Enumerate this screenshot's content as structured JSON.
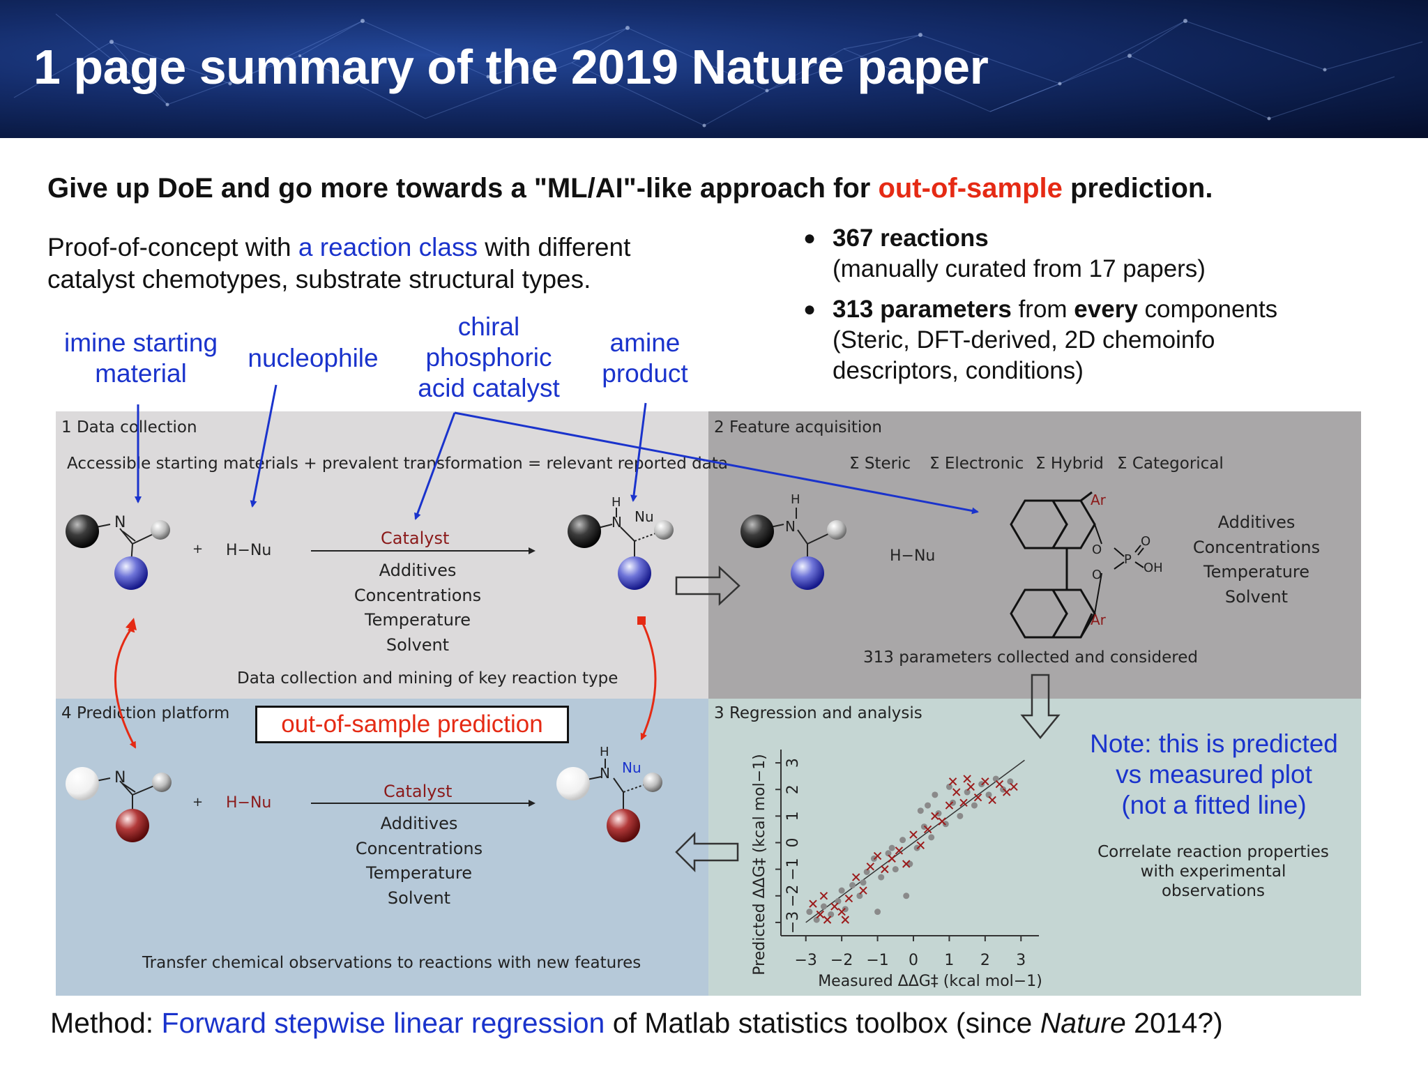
{
  "header": {
    "title": "1 page summary of the 2019 Nature paper"
  },
  "headline": {
    "part1": "Give up DoE and go more towards a \"ML/AI\"-like approach for ",
    "highlight": "out-of-sample",
    "part2": " prediction."
  },
  "intro": {
    "part1": "Proof-of-concept with ",
    "link": "a reaction class",
    "part2": " with different",
    "line2": "catalyst chemotypes, substrate structural types."
  },
  "bullets": [
    {
      "bold": "367 reactions",
      "rest": "",
      "sub": [
        "(manually curated from 17 papers)"
      ]
    },
    {
      "bold": "313 parameters",
      "mid": " from ",
      "bold2": "every",
      "rest": " components",
      "sub": [
        "(Steric, DFT-derived, 2D chemoinfo",
        "descriptors, conditions)"
      ]
    }
  ],
  "labels": {
    "imine": [
      "imine starting",
      "material"
    ],
    "nucleophile": "nucleophile",
    "catalyst": [
      "chiral",
      "phosphoric",
      "acid catalyst"
    ],
    "amine": [
      "amine",
      "product"
    ]
  },
  "panels": {
    "p1": {
      "title": "1  Data collection",
      "subtitle": "Accessible starting materials + prevalent transformation = relevant reported data",
      "footer": "Data collection and mining of key reaction type"
    },
    "p2": {
      "title": "2  Feature acquisition",
      "descriptors": [
        "Σ Steric",
        "Σ Electronic",
        "Σ Hybrid",
        "Σ Categorical"
      ],
      "footer": "313 parameters collected and considered"
    },
    "p3": {
      "title": "3  Regression and analysis",
      "side_note": [
        "Correlate reaction properties",
        "with experimental observations"
      ]
    },
    "p4": {
      "title": "4  Prediction platform",
      "footer": "Transfer chemical observations to reactions with new features"
    }
  },
  "reaction": {
    "catalyst": "Catalyst",
    "conditions": [
      "Additives",
      "Concentrations",
      "Temperature",
      "Solvent"
    ],
    "plus": "+",
    "reagent": "H−Nu",
    "atom_N": "N",
    "atom_H": "H",
    "atom_Nu": "Nu",
    "ar": "Ar",
    "atom_O": "O",
    "atom_P": "P",
    "oh": "OH"
  },
  "callouts": {
    "oos_box": "out-of-sample prediction",
    "note": [
      "Note: this is predicted",
      "vs measured plot",
      "(not a fitted line)"
    ]
  },
  "method": {
    "prefix": "Method: ",
    "link": "Forward stepwise linear regression",
    "mid": " of Matlab statistics toolbox (since ",
    "journal": "Nature",
    "suffix": " 2014?)"
  },
  "chart_data": {
    "type": "scatter",
    "xlabel": "Measured ΔΔG‡ (kcal mol−1)",
    "ylabel": "Predicted ΔΔG‡ (kcal mol−1)",
    "xlim": [
      -3.5,
      3.5
    ],
    "ylim": [
      -3.5,
      3.5
    ],
    "xticks": [
      "−3",
      "−2",
      "−1",
      "0",
      "1",
      "2",
      "3"
    ],
    "yticks": [
      "3",
      "2",
      "1",
      "0",
      "−1",
      "−2",
      "−3"
    ],
    "reference_line": [
      [
        -3,
        -3
      ],
      [
        3.1,
        3.1
      ]
    ],
    "series": [
      {
        "marker": "circle",
        "color": "#8a8a8a",
        "points": [
          [
            -2.9,
            -2.6
          ],
          [
            -2.7,
            -2.9
          ],
          [
            -2.5,
            -2.4
          ],
          [
            -2.3,
            -2.7
          ],
          [
            -2.1,
            -2.2
          ],
          [
            -1.9,
            -2.5
          ],
          [
            -1.7,
            -1.6
          ],
          [
            -1.5,
            -2.0
          ],
          [
            -1.3,
            -1.1
          ],
          [
            -1.1,
            -0.6
          ],
          [
            -0.9,
            -1.3
          ],
          [
            -0.7,
            -0.4
          ],
          [
            -0.5,
            -1.0
          ],
          [
            -0.3,
            0.1
          ],
          [
            -0.1,
            -0.8
          ],
          [
            0.1,
            -0.2
          ],
          [
            0.3,
            0.6
          ],
          [
            0.5,
            0.2
          ],
          [
            0.7,
            1.1
          ],
          [
            0.9,
            0.7
          ],
          [
            1.1,
            1.5
          ],
          [
            1.3,
            1.0
          ],
          [
            1.5,
            1.9
          ],
          [
            1.7,
            1.4
          ],
          [
            1.9,
            2.2
          ],
          [
            2.1,
            1.8
          ],
          [
            2.3,
            2.4
          ],
          [
            2.5,
            2.0
          ],
          [
            2.7,
            2.3
          ],
          [
            0.4,
            1.4
          ],
          [
            0.6,
            1.8
          ],
          [
            0.2,
            1.2
          ],
          [
            1.0,
            2.1
          ],
          [
            -0.6,
            -0.2
          ],
          [
            -1.4,
            -1.5
          ],
          [
            -2.0,
            -1.8
          ],
          [
            -0.2,
            -2.0
          ],
          [
            -1.0,
            -2.6
          ]
        ]
      },
      {
        "marker": "x",
        "color": "#9b1b1b",
        "points": [
          [
            -2.8,
            -2.3
          ],
          [
            -2.6,
            -2.7
          ],
          [
            -2.4,
            -2.9
          ],
          [
            -2.2,
            -2.4
          ],
          [
            -2.0,
            -2.6
          ],
          [
            -1.8,
            -2.1
          ],
          [
            -1.6,
            -1.3
          ],
          [
            -1.4,
            -1.8
          ],
          [
            -1.2,
            -0.9
          ],
          [
            -1.0,
            -0.5
          ],
          [
            -0.8,
            -1.0
          ],
          [
            -0.6,
            -0.6
          ],
          [
            -0.4,
            -0.3
          ],
          [
            -0.2,
            -0.8
          ],
          [
            0.0,
            0.3
          ],
          [
            0.2,
            -0.1
          ],
          [
            0.4,
            0.5
          ],
          [
            0.6,
            1.0
          ],
          [
            0.8,
            0.8
          ],
          [
            1.0,
            1.4
          ],
          [
            1.2,
            1.9
          ],
          [
            1.4,
            1.5
          ],
          [
            1.6,
            2.1
          ],
          [
            1.8,
            1.7
          ],
          [
            2.0,
            2.3
          ],
          [
            2.2,
            1.6
          ],
          [
            2.4,
            2.2
          ],
          [
            2.6,
            1.9
          ],
          [
            2.8,
            2.1
          ],
          [
            1.1,
            2.3
          ],
          [
            1.5,
            2.4
          ],
          [
            -2.5,
            -2.0
          ],
          [
            -1.9,
            -2.9
          ]
        ]
      }
    ]
  },
  "colors": {
    "blue": "#1a33cc",
    "red": "#e52a14",
    "panel1": "#dcdadb",
    "panel2": "#a9a7a8",
    "panel3": "#c5d6d3",
    "panel4": "#b6c9d9"
  },
  "icons": [
    "downward-arrow-icon",
    "leftward-arrow-icon",
    "rightward-arrow-icon"
  ]
}
